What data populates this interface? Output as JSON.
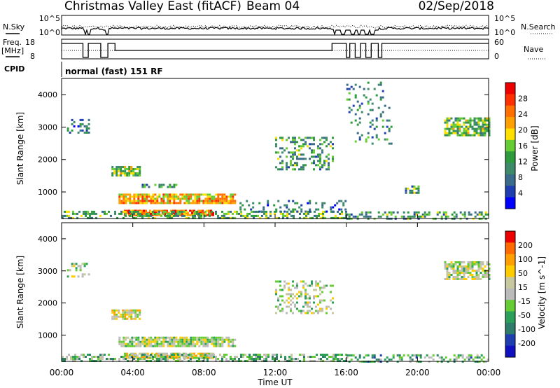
{
  "header": {
    "station": "Christmas Valley East (fitACF)",
    "beam": "Beam 04",
    "date": "02/Sep/2018"
  },
  "top_panels": {
    "nsky_label": "N.Sky",
    "nsky_ticks": [
      "10^5",
      "10^0"
    ],
    "nsearch_label": "N.Search",
    "nsearch_ticks": [
      "10^5",
      "10^0"
    ],
    "freq_label": "Freq.",
    "freq_unit": "[MHz]",
    "freq_ticks": [
      "18",
      "8"
    ],
    "nave_label": "Nave",
    "nave_ticks": [
      "60",
      "0"
    ],
    "cpid_label": "CPID",
    "cpid_value": "normal (fast) 151 RF"
  },
  "colors": {
    "power_scale": [
      "#0000ff",
      "#1f3fb0",
      "#3a6b8a",
      "#3d8a6a",
      "#2e9a3e",
      "#66cc33",
      "#ffe000",
      "#ffa000",
      "#ff7000",
      "#ff3000",
      "#ee0000"
    ],
    "velocity_scale": [
      "#1010c0",
      "#1f3fb0",
      "#2e7d6a",
      "#2aa05a",
      "#66cc33",
      "#bbbbbb",
      "#c8c8a0",
      "#ffcc00",
      "#ffa000",
      "#ff6a00",
      "#ee0000"
    ]
  },
  "chart_data": [
    {
      "type": "heatmap",
      "ylabel": "Slant Range [km]",
      "yticks": [
        "4000",
        "3000",
        "2000",
        "1000"
      ],
      "colorbar_label": "Power [dB]",
      "colorbar_ticks": [
        "28",
        "24",
        "20",
        "16",
        "12",
        "8",
        "4"
      ],
      "ylim": [
        180,
        4500
      ],
      "regions": [
        {
          "t0": 0.3,
          "t1": 1.5,
          "r0": 2800,
          "r1": 3250,
          "level": 0.25,
          "density": 0.3
        },
        {
          "t0": 2.8,
          "t1": 4.4,
          "r0": 1500,
          "r1": 1800,
          "level": 0.5,
          "density": 0.8
        },
        {
          "t0": 4.5,
          "t1": 6.5,
          "r0": 1150,
          "r1": 1250,
          "level": 0.3,
          "density": 0.6
        },
        {
          "t0": 3.2,
          "t1": 9.8,
          "r0": 650,
          "r1": 950,
          "level": 0.7,
          "density": 0.85
        },
        {
          "t0": 3.5,
          "t1": 8.5,
          "r0": 300,
          "r1": 450,
          "level": 0.85,
          "density": 0.85
        },
        {
          "t0": 0.0,
          "t1": 16.0,
          "r0": 200,
          "r1": 420,
          "level": 0.4,
          "density": 0.5
        },
        {
          "t0": 10.0,
          "t1": 16.0,
          "r0": 400,
          "r1": 750,
          "level": 0.2,
          "density": 0.25
        },
        {
          "t0": 12.0,
          "t1": 15.2,
          "r0": 1700,
          "r1": 2700,
          "level": 0.35,
          "density": 0.35
        },
        {
          "t0": 19.3,
          "t1": 20.1,
          "r0": 1000,
          "r1": 1200,
          "level": 0.35,
          "density": 0.6
        },
        {
          "t0": 21.5,
          "t1": 24.0,
          "r0": 2750,
          "r1": 3300,
          "level": 0.45,
          "density": 0.75
        },
        {
          "t0": 16.0,
          "t1": 18.5,
          "r0": 2500,
          "r1": 4400,
          "level": 0.3,
          "density": 0.12
        },
        {
          "t0": 16.0,
          "t1": 24.0,
          "r0": 200,
          "r1": 400,
          "level": 0.35,
          "density": 0.45
        }
      ]
    },
    {
      "type": "heatmap",
      "xlabel": "Time UT",
      "xticks": [
        "00:00",
        "04:00",
        "08:00",
        "12:00",
        "16:00",
        "20:00",
        "00:00"
      ],
      "ylabel": "Slant Range [km]",
      "yticks": [
        "4000",
        "3000",
        "2000",
        "1000"
      ],
      "colorbar_label": "Velocity [m s^-1]",
      "colorbar_ticks": [
        "200",
        "100",
        "50",
        "15",
        "-15",
        "-50",
        "-100",
        "-200"
      ],
      "ylim": [
        180,
        4500
      ],
      "regions": [
        {
          "t0": 0.3,
          "t1": 1.5,
          "r0": 2800,
          "r1": 3250,
          "level": 0.5,
          "density": 0.3
        },
        {
          "t0": 2.8,
          "t1": 4.4,
          "r0": 1500,
          "r1": 1800,
          "level": 0.6,
          "density": 0.8
        },
        {
          "t0": 3.2,
          "t1": 9.8,
          "r0": 650,
          "r1": 950,
          "level": 0.5,
          "density": 0.85
        },
        {
          "t0": 3.5,
          "t1": 8.5,
          "r0": 300,
          "r1": 450,
          "level": 0.6,
          "density": 0.85
        },
        {
          "t0": 0.0,
          "t1": 16.0,
          "r0": 200,
          "r1": 420,
          "level": 0.4,
          "density": 0.5
        },
        {
          "t0": 12.0,
          "t1": 15.2,
          "r0": 1700,
          "r1": 2700,
          "level": 0.5,
          "density": 0.35
        },
        {
          "t0": 21.5,
          "t1": 24.0,
          "r0": 2750,
          "r1": 3300,
          "level": 0.5,
          "density": 0.75
        },
        {
          "t0": 16.0,
          "t1": 24.0,
          "r0": 200,
          "r1": 400,
          "level": 0.35,
          "density": 0.45
        }
      ]
    }
  ]
}
